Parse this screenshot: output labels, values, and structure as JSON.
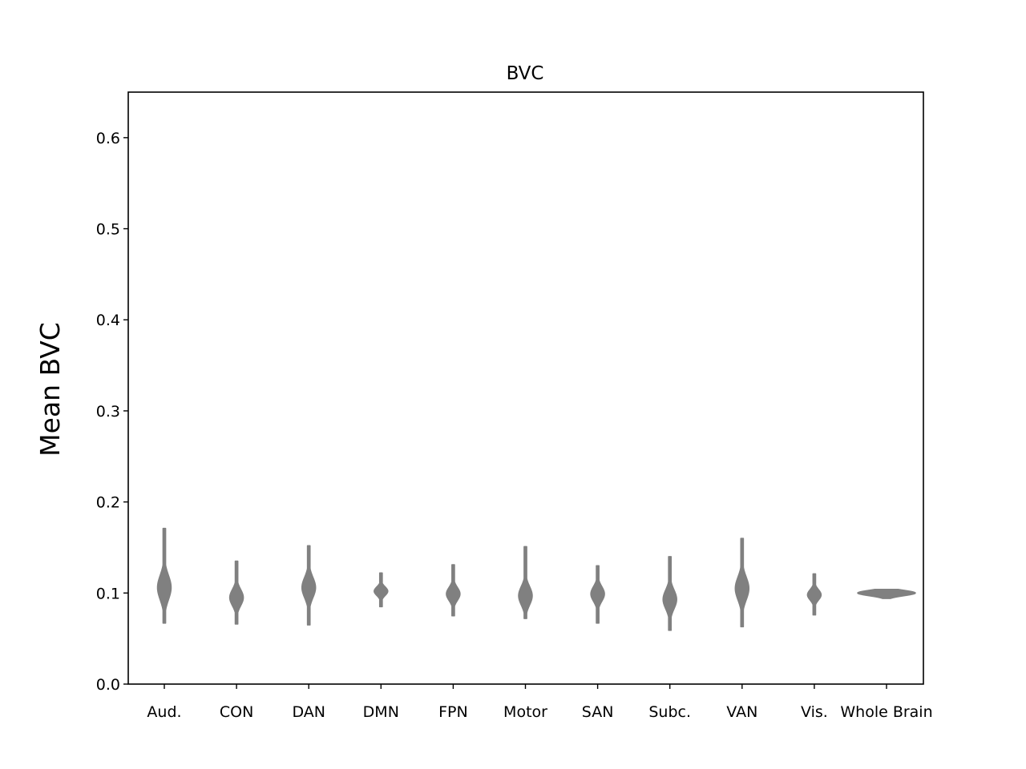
{
  "chart_data": {
    "type": "violin",
    "title": "BVC",
    "xlabel": "",
    "ylabel": "Mean BVC",
    "ylim": [
      0.0,
      0.65
    ],
    "yticks": [
      "0.0",
      "0.1",
      "0.2",
      "0.3",
      "0.4",
      "0.5",
      "0.6"
    ],
    "grid": false,
    "color": "#808080",
    "categories": [
      "Aud.",
      "CON",
      "DAN",
      "DMN",
      "FPN",
      "Motor",
      "SAN",
      "Subc.",
      "VAN",
      "Vis.",
      "Whole Brain"
    ],
    "series": [
      {
        "category": "Aud.",
        "min": 0.067,
        "max": 0.171,
        "peak": 0.106
      },
      {
        "category": "CON",
        "min": 0.066,
        "max": 0.135,
        "peak": 0.095
      },
      {
        "category": "DAN",
        "min": 0.065,
        "max": 0.152,
        "peak": 0.106
      },
      {
        "category": "DMN",
        "min": 0.085,
        "max": 0.122,
        "peak": 0.102
      },
      {
        "category": "FPN",
        "min": 0.075,
        "max": 0.131,
        "peak": 0.099
      },
      {
        "category": "Motor",
        "min": 0.072,
        "max": 0.151,
        "peak": 0.097
      },
      {
        "category": "SAN",
        "min": 0.067,
        "max": 0.13,
        "peak": 0.099
      },
      {
        "category": "Subc.",
        "min": 0.059,
        "max": 0.14,
        "peak": 0.093
      },
      {
        "category": "VAN",
        "min": 0.063,
        "max": 0.16,
        "peak": 0.105
      },
      {
        "category": "Vis.",
        "min": 0.076,
        "max": 0.121,
        "peak": 0.098
      },
      {
        "category": "Whole Brain",
        "min": 0.094,
        "max": 0.104,
        "peak": 0.1
      }
    ]
  }
}
